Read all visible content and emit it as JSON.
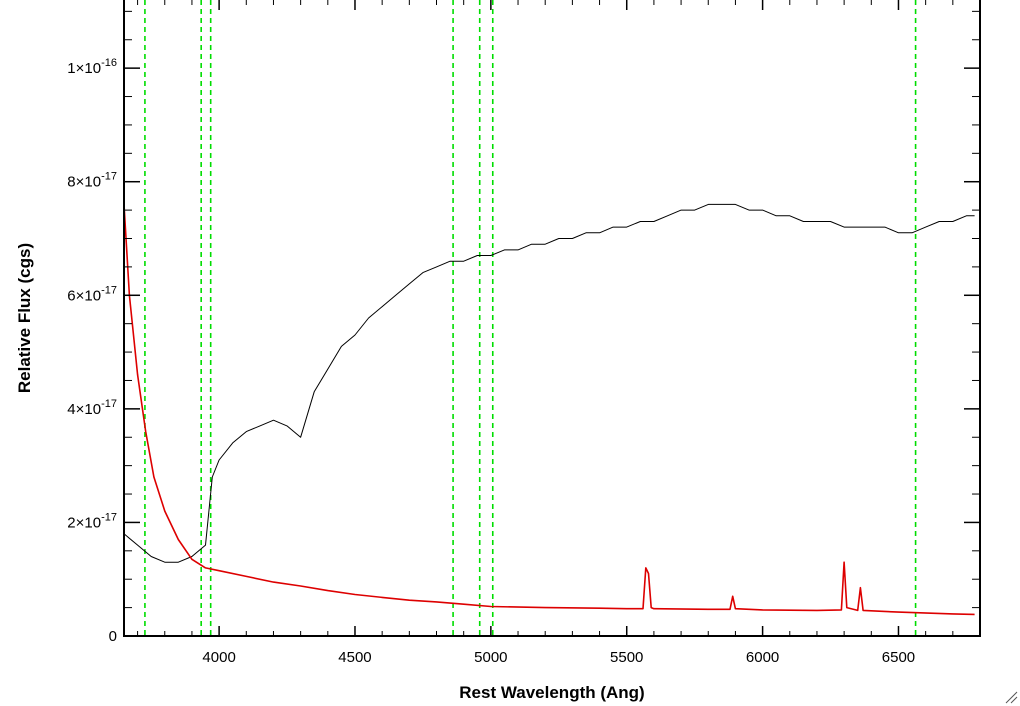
{
  "chart_data": {
    "type": "line",
    "title": "",
    "xlabel": "Rest Wavelength (Ang)",
    "ylabel": "Relative Flux (cgs)",
    "xlim": [
      3650,
      6800
    ],
    "ylim": [
      0,
      1.12e-16
    ],
    "x_ticks": [
      4000,
      4500,
      5000,
      5500,
      6000,
      6500
    ],
    "y_ticks": [
      {
        "value": 0,
        "mantissa": "0",
        "exponent": ""
      },
      {
        "value": 2e-17,
        "mantissa": "2×10",
        "exponent": "-17"
      },
      {
        "value": 4e-17,
        "mantissa": "4×10",
        "exponent": "-17"
      },
      {
        "value": 6e-17,
        "mantissa": "6×10",
        "exponent": "-17"
      },
      {
        "value": 8e-17,
        "mantissa": "8×10",
        "exponent": "-17"
      },
      {
        "value": 1e-16,
        "mantissa": "1×10",
        "exponent": "-16"
      }
    ],
    "grid": false,
    "vertical_reference_lines": {
      "color": "#00dd00",
      "style": "dashed",
      "x": [
        3727,
        3934,
        3969,
        4861,
        4959,
        5007,
        6563
      ]
    },
    "series": [
      {
        "color": "#000000",
        "x": [
          3650,
          3700,
          3750,
          3800,
          3850,
          3900,
          3950,
          3975,
          4000,
          4050,
          4100,
          4150,
          4200,
          4250,
          4300,
          4350,
          4400,
          4450,
          4500,
          4550,
          4600,
          4650,
          4700,
          4750,
          4800,
          4850,
          4900,
          4950,
          5000,
          5050,
          5100,
          5150,
          5200,
          5250,
          5300,
          5350,
          5400,
          5450,
          5500,
          5550,
          5600,
          5650,
          5700,
          5750,
          5800,
          5850,
          5900,
          5950,
          6000,
          6050,
          6100,
          6150,
          6200,
          6250,
          6300,
          6350,
          6400,
          6450,
          6500,
          6550,
          6600,
          6650,
          6700,
          6750,
          6780
        ],
        "y": [
          1.8e-17,
          1.6e-17,
          1.4e-17,
          1.3e-17,
          1.3e-17,
          1.4e-17,
          1.6e-17,
          2.8e-17,
          3.1e-17,
          3.4e-17,
          3.6e-17,
          3.7e-17,
          3.8e-17,
          3.7e-17,
          3.5e-17,
          4.3e-17,
          4.7e-17,
          5.1e-17,
          5.3e-17,
          5.6e-17,
          5.8e-17,
          6e-17,
          6.2e-17,
          6.4e-17,
          6.5e-17,
          6.6e-17,
          6.6e-17,
          6.7e-17,
          6.7e-17,
          6.8e-17,
          6.8e-17,
          6.9e-17,
          6.9e-17,
          7e-17,
          7e-17,
          7.1e-17,
          7.1e-17,
          7.2e-17,
          7.2e-17,
          7.3e-17,
          7.3e-17,
          7.4e-17,
          7.5e-17,
          7.5e-17,
          7.6e-17,
          7.6e-17,
          7.6e-17,
          7.5e-17,
          7.5e-17,
          7.4e-17,
          7.4e-17,
          7.3e-17,
          7.3e-17,
          7.3e-17,
          7.2e-17,
          7.2e-17,
          7.2e-17,
          7.2e-17,
          7.1e-17,
          7.1e-17,
          7.2e-17,
          7.3e-17,
          7.3e-17,
          7.4e-17,
          7.4e-17
        ]
      },
      {
        "color": "#dd0000",
        "x": [
          3650,
          3670,
          3700,
          3730,
          3760,
          3800,
          3850,
          3900,
          3950,
          4000,
          4100,
          4200,
          4300,
          4400,
          4500,
          4600,
          4700,
          4800,
          4900,
          5000,
          5200,
          5400,
          5500,
          5560,
          5570,
          5580,
          5590,
          5600,
          5800,
          5880,
          5890,
          5900,
          6000,
          6200,
          6290,
          6300,
          6310,
          6350,
          6360,
          6370,
          6500,
          6700,
          6780
        ],
        "y": [
          7.6e-17,
          6e-17,
          4.6e-17,
          3.6e-17,
          2.8e-17,
          2.2e-17,
          1.7e-17,
          1.35e-17,
          1.2e-17,
          1.15e-17,
          1.05e-17,
          9.5e-18,
          8.8e-18,
          8e-18,
          7.3e-18,
          6.8e-18,
          6.3e-18,
          6e-18,
          5.6e-18,
          5.2e-18,
          5e-18,
          4.9e-18,
          4.8e-18,
          4.8e-18,
          1.2e-17,
          1.1e-17,
          5e-18,
          4.8e-18,
          4.7e-18,
          4.7e-18,
          7e-18,
          4.8e-18,
          4.6e-18,
          4.5e-18,
          4.6e-18,
          1.3e-17,
          5e-18,
          4.5e-18,
          8.5e-18,
          4.5e-18,
          4.2e-18,
          3.9e-18,
          3.8e-18
        ]
      }
    ]
  }
}
